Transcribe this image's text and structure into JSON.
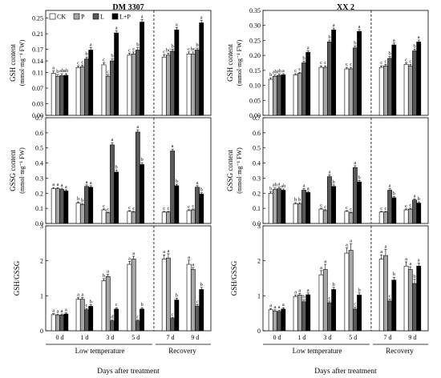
{
  "figure": {
    "legend": [
      {
        "label": "CK",
        "color": "#ffffff"
      },
      {
        "label": "P",
        "color": "#a6a6a6"
      },
      {
        "label": "L",
        "color": "#595959"
      },
      {
        "label": "L+P",
        "color": "#000000"
      }
    ],
    "x_axis_title": "Days after treatment",
    "group_labels": {
      "low": "Low temperature",
      "recovery": "Recovery"
    },
    "panel_titles": [
      "DM 3307",
      "XX 2"
    ]
  },
  "chart_data": [
    {
      "type": "bar",
      "cultivar": "DM 3307",
      "metric": "GSH",
      "title": "DM 3307",
      "ylabel_line1": "GSH content",
      "ylabel_line2": "(mmol·mg⁻¹ FW)",
      "categories": [
        "0 d",
        "1 d",
        "3 d",
        "5 d",
        "7 d",
        "9 d"
      ],
      "ylim": [
        0,
        0.27
      ],
      "yticks": [
        0,
        0.03,
        0.07,
        0.11,
        0.14,
        0.17,
        0.21,
        0.25
      ],
      "ytick_labels": [
        "0.00",
        "0.03",
        "0.07",
        "0.11",
        "0.14",
        "0.17",
        "0.21",
        "0.25"
      ],
      "series": [
        {
          "name": "CK",
          "color": "#ffffff",
          "values": [
            0.108,
            0.123,
            0.13,
            0.155,
            0.15,
            0.158
          ],
          "errors": [
            0.006,
            0.004,
            0.005,
            0.005,
            0.006,
            0.005
          ],
          "letters": [
            "a",
            "c",
            "c",
            "c",
            "c",
            "c"
          ]
        },
        {
          "name": "P",
          "color": "#a6a6a6",
          "values": [
            0.1,
            0.125,
            0.1,
            0.158,
            0.155,
            0.158
          ],
          "errors": [
            0.005,
            0.004,
            0.004,
            0.005,
            0.005,
            0.005
          ],
          "letters": [
            "b",
            "c",
            "c",
            "c",
            "bc",
            "bc"
          ]
        },
        {
          "name": "L",
          "color": "#595959",
          "values": [
            0.102,
            0.145,
            0.14,
            0.168,
            0.165,
            0.168
          ],
          "errors": [
            0.005,
            0.005,
            0.005,
            0.006,
            0.005,
            0.005
          ],
          "letters": [
            "ab",
            "b",
            "b",
            "b",
            "b",
            "b"
          ]
        },
        {
          "name": "L+P",
          "color": "#000000",
          "values": [
            0.103,
            0.168,
            0.212,
            0.24,
            0.22,
            0.238
          ],
          "errors": [
            0.004,
            0.006,
            0.005,
            0.006,
            0.006,
            0.006
          ],
          "letters": [
            "ab",
            "a",
            "a",
            "a",
            "a",
            "a"
          ]
        }
      ]
    },
    {
      "type": "bar",
      "cultivar": "XX 2",
      "metric": "GSH",
      "title": "XX 2",
      "ylabel_line1": "GSH content",
      "ylabel_line2": "(mmol·mg⁻¹ FW)",
      "categories": [
        "0 d",
        "1 d",
        "3 d",
        "5 d",
        "7 d",
        "9 d"
      ],
      "ylim": [
        0,
        0.35
      ],
      "yticks": [
        0,
        0.05,
        0.1,
        0.15,
        0.2,
        0.25,
        0.3,
        0.35
      ],
      "ytick_labels": [
        "0.00",
        "0.05",
        "0.10",
        "0.15",
        "0.20",
        "0.25",
        "0.30",
        "0.35"
      ],
      "series": [
        {
          "name": "CK",
          "color": "#ffffff",
          "values": [
            0.12,
            0.135,
            0.16,
            0.155,
            0.16,
            0.17
          ],
          "errors": [
            0.005,
            0.004,
            0.005,
            0.005,
            0.005,
            0.005
          ],
          "letters": [
            "b",
            "c",
            "c",
            "c",
            "c",
            "c"
          ]
        },
        {
          "name": "P",
          "color": "#a6a6a6",
          "values": [
            0.13,
            0.14,
            0.16,
            0.155,
            0.165,
            0.165
          ],
          "errors": [
            0.005,
            0.004,
            0.005,
            0.005,
            0.005,
            0.005
          ],
          "letters": [
            "ab",
            "c",
            "c",
            "c",
            "c",
            "c"
          ]
        },
        {
          "name": "L",
          "color": "#595959",
          "values": [
            0.133,
            0.175,
            0.245,
            0.225,
            0.19,
            0.215
          ],
          "errors": [
            0.005,
            0.005,
            0.006,
            0.006,
            0.006,
            0.006
          ],
          "letters": [
            "ab",
            "b",
            "b",
            "b",
            "b",
            "b"
          ]
        },
        {
          "name": "L+P",
          "color": "#000000",
          "values": [
            0.135,
            0.21,
            0.285,
            0.28,
            0.235,
            0.245
          ],
          "errors": [
            0.004,
            0.005,
            0.006,
            0.006,
            0.006,
            0.006
          ],
          "letters": [
            "a",
            "a",
            "a",
            "a",
            "a",
            "a"
          ]
        }
      ]
    },
    {
      "type": "bar",
      "cultivar": "DM 3307",
      "metric": "GSSG",
      "ylabel_line1": "GSSG content",
      "ylabel_line2": "(mmol·mg⁻¹ FW)",
      "categories": [
        "0 d",
        "1 d",
        "3 d",
        "5 d",
        "7 d",
        "9 d"
      ],
      "ylim": [
        0,
        0.7
      ],
      "yticks": [
        0,
        0.1,
        0.2,
        0.3,
        0.4,
        0.5,
        0.6,
        0.7
      ],
      "ytick_labels": [
        "0.0",
        "0.1",
        "0.2",
        "0.3",
        "0.4",
        "0.5",
        "0.6",
        "0.7"
      ],
      "series": [
        {
          "name": "CK",
          "color": "#ffffff",
          "values": [
            0.23,
            0.135,
            0.09,
            0.08,
            0.075,
            0.085
          ],
          "errors": [
            0.008,
            0.008,
            0.006,
            0.005,
            0.005,
            0.006
          ],
          "letters": [
            "a",
            "b",
            "c",
            "c",
            "c",
            "c"
          ]
        },
        {
          "name": "P",
          "color": "#a6a6a6",
          "values": [
            0.23,
            0.125,
            0.07,
            0.075,
            0.075,
            0.09
          ],
          "errors": [
            0.008,
            0.008,
            0.005,
            0.005,
            0.005,
            0.006
          ],
          "letters": [
            "a",
            "b",
            "c",
            "c",
            "c",
            "c"
          ]
        },
        {
          "name": "L",
          "color": "#595959",
          "values": [
            0.225,
            0.245,
            0.52,
            0.605,
            0.48,
            0.24
          ],
          "errors": [
            0.008,
            0.01,
            0.015,
            0.015,
            0.012,
            0.01
          ],
          "letters": [
            "a",
            "a",
            "a",
            "a",
            "a",
            "a"
          ]
        },
        {
          "name": "L+P",
          "color": "#000000",
          "values": [
            0.215,
            0.24,
            0.34,
            0.39,
            0.25,
            0.195
          ],
          "errors": [
            0.008,
            0.01,
            0.012,
            0.012,
            0.01,
            0.008
          ],
          "letters": [
            "a",
            "a",
            "b",
            "b",
            "b",
            "b"
          ]
        }
      ]
    },
    {
      "type": "bar",
      "cultivar": "XX 2",
      "metric": "GSSG",
      "ylabel_line1": "GSSG content",
      "ylabel_line2": "(mmol·mg⁻¹ FW)",
      "categories": [
        "0 d",
        "1 d",
        "3 d",
        "5 d",
        "7 d",
        "9 d"
      ],
      "ylim": [
        0,
        0.7
      ],
      "yticks": [
        0,
        0.1,
        0.2,
        0.3,
        0.4,
        0.5,
        0.6,
        0.7
      ],
      "ytick_labels": [
        "0.0",
        "0.1",
        "0.2",
        "0.3",
        "0.4",
        "0.5",
        "0.6",
        "0.7"
      ],
      "series": [
        {
          "name": "CK",
          "color": "#ffffff",
          "values": [
            0.2,
            0.13,
            0.095,
            0.08,
            0.075,
            0.09
          ],
          "errors": [
            0.01,
            0.008,
            0.006,
            0.005,
            0.005,
            0.006
          ],
          "letters": [
            "b",
            "b",
            "c",
            "c",
            "c",
            "c"
          ]
        },
        {
          "name": "P",
          "color": "#a6a6a6",
          "values": [
            0.225,
            0.13,
            0.085,
            0.07,
            0.075,
            0.095
          ],
          "errors": [
            0.01,
            0.008,
            0.006,
            0.005,
            0.005,
            0.006
          ],
          "letters": [
            "ab",
            "b",
            "c",
            "c",
            "c",
            "c"
          ]
        },
        {
          "name": "L",
          "color": "#595959",
          "values": [
            0.23,
            0.22,
            0.31,
            0.37,
            0.22,
            0.155
          ],
          "errors": [
            0.01,
            0.01,
            0.012,
            0.012,
            0.01,
            0.008
          ],
          "letters": [
            "a",
            "a",
            "a",
            "a",
            "a",
            "a"
          ]
        },
        {
          "name": "L+P",
          "color": "#000000",
          "values": [
            0.22,
            0.205,
            0.245,
            0.275,
            0.17,
            0.135
          ],
          "errors": [
            0.008,
            0.008,
            0.01,
            0.01,
            0.008,
            0.008
          ],
          "letters": [
            "ab",
            "a",
            "b",
            "b",
            "b",
            "b"
          ]
        }
      ]
    },
    {
      "type": "bar",
      "cultivar": "DM 3307",
      "metric": "GSH/GSSG",
      "ylabel_line1": "GSH/GSSG",
      "categories": [
        "0 d",
        "1 d",
        "3 d",
        "5 d",
        "7 d",
        "9 d"
      ],
      "ylim": [
        0,
        3
      ],
      "yticks": [
        0,
        1,
        2,
        3
      ],
      "ytick_labels": [
        "0",
        "1",
        "2",
        "3"
      ],
      "series": [
        {
          "name": "CK",
          "color": "#ffffff",
          "values": [
            0.46,
            0.9,
            1.43,
            1.9,
            2.05,
            1.9
          ],
          "errors": [
            0.03,
            0.05,
            0.06,
            0.08,
            0.12,
            0.12
          ],
          "letters": [
            "a",
            "a",
            "b",
            "a",
            "a",
            "a"
          ]
        },
        {
          "name": "P",
          "color": "#a6a6a6",
          "values": [
            0.44,
            0.9,
            1.55,
            2.05,
            2.08,
            1.75
          ],
          "errors": [
            0.03,
            0.05,
            0.06,
            0.08,
            0.12,
            0.06
          ],
          "letters": [
            "a",
            "a",
            "a",
            "a",
            "a",
            "a"
          ]
        },
        {
          "name": "L",
          "color": "#595959",
          "values": [
            0.45,
            0.6,
            0.28,
            0.28,
            0.35,
            0.7
          ],
          "errors": [
            0.03,
            0.04,
            0.03,
            0.03,
            0.03,
            0.05
          ],
          "letters": [
            "a",
            "c",
            "d",
            "c",
            "c",
            "c"
          ]
        },
        {
          "name": "L+P",
          "color": "#000000",
          "values": [
            0.48,
            0.7,
            0.62,
            0.62,
            0.88,
            1.18
          ],
          "errors": [
            0.03,
            0.05,
            0.04,
            0.04,
            0.05,
            0.06
          ],
          "letters": [
            "a",
            "b",
            "c",
            "b",
            "b",
            "b"
          ]
        }
      ]
    },
    {
      "type": "bar",
      "cultivar": "XX 2",
      "metric": "GSH/GSSG",
      "ylabel_line1": "GSH/GSSG",
      "categories": [
        "0 d",
        "1 d",
        "3 d",
        "5 d",
        "7 d",
        "9 d"
      ],
      "ylim": [
        0,
        3
      ],
      "yticks": [
        0,
        1,
        2,
        3
      ],
      "ytick_labels": [
        "0",
        "1",
        "2",
        "3"
      ],
      "series": [
        {
          "name": "CK",
          "color": "#ffffff",
          "values": [
            0.6,
            0.98,
            1.6,
            2.22,
            2.05,
            1.85
          ],
          "errors": [
            0.04,
            0.04,
            0.12,
            0.15,
            0.12,
            0.12
          ],
          "letters": [
            "a",
            "a",
            "a",
            "a",
            "a",
            "a"
          ]
        },
        {
          "name": "P",
          "color": "#a6a6a6",
          "values": [
            0.56,
            1.02,
            1.75,
            2.3,
            2.15,
            1.75
          ],
          "errors": [
            0.04,
            0.05,
            0.15,
            0.18,
            0.18,
            0.08
          ],
          "letters": [
            "a",
            "a",
            "a",
            "a",
            "a",
            "a"
          ]
        },
        {
          "name": "L",
          "color": "#595959",
          "values": [
            0.55,
            0.83,
            0.8,
            0.62,
            0.85,
            1.35
          ],
          "errors": [
            0.04,
            0.05,
            0.05,
            0.05,
            0.05,
            0.12
          ],
          "letters": [
            "a",
            "b",
            "c",
            "c",
            "c",
            "b"
          ]
        },
        {
          "name": "L+P",
          "color": "#000000",
          "values": [
            0.62,
            1.03,
            1.18,
            1.02,
            1.45,
            1.85
          ],
          "errors": [
            0.04,
            0.05,
            0.06,
            0.06,
            0.08,
            0.08
          ],
          "letters": [
            "a",
            "a",
            "b",
            "b",
            "b",
            "a"
          ]
        }
      ]
    }
  ]
}
